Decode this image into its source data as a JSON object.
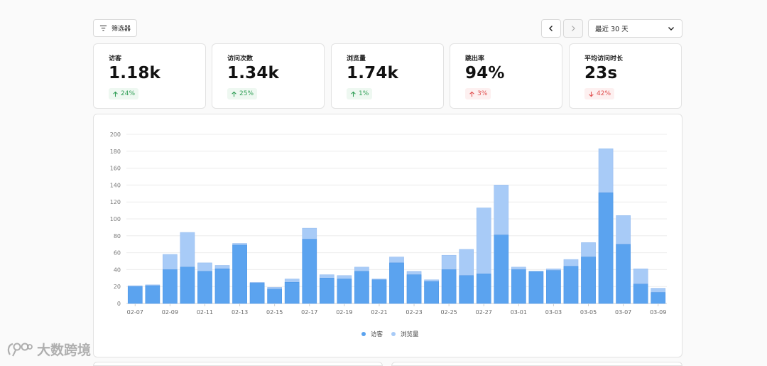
{
  "toolbar": {
    "filter_label": "筛选器",
    "range_label": "最近 30 天"
  },
  "metrics": [
    {
      "label": "访客",
      "value": "1.18k",
      "delta": "24%",
      "direction": "up",
      "tone": "good"
    },
    {
      "label": "访问次数",
      "value": "1.34k",
      "delta": "25%",
      "direction": "up",
      "tone": "good"
    },
    {
      "label": "浏览量",
      "value": "1.74k",
      "delta": "1%",
      "direction": "up",
      "tone": "good"
    },
    {
      "label": "跳出率",
      "value": "94%",
      "delta": "3%",
      "direction": "up",
      "tone": "bad"
    },
    {
      "label": "平均访问时长",
      "value": "23s",
      "delta": "42%",
      "direction": "down",
      "tone": "bad"
    }
  ],
  "colors": {
    "visitors": "#5ba3ef",
    "views": "#a8cbf7",
    "good": "#2f9e55",
    "bad": "#e05050"
  },
  "chart_data": {
    "type": "bar",
    "stacked_overlay": true,
    "ylim": [
      0,
      200
    ],
    "yticks": [
      0,
      20,
      40,
      60,
      80,
      100,
      120,
      140,
      160,
      180,
      200
    ],
    "categories": [
      "02-07",
      "02-08",
      "02-09",
      "02-10",
      "02-11",
      "02-12",
      "02-13",
      "02-14",
      "02-15",
      "02-16",
      "02-17",
      "02-18",
      "02-19",
      "02-20",
      "02-21",
      "02-22",
      "02-23",
      "02-24",
      "02-25",
      "02-26",
      "02-27",
      "02-28",
      "03-01",
      "03-02",
      "03-03",
      "03-04",
      "03-05",
      "03-06",
      "03-07",
      "03-08",
      "03-09"
    ],
    "xtick_labels": [
      "02-07",
      "",
      "02-09",
      "",
      "02-11",
      "",
      "02-13",
      "",
      "02-15",
      "",
      "02-17",
      "",
      "02-19",
      "",
      "02-21",
      "",
      "02-23",
      "",
      "02-25",
      "",
      "02-27",
      "",
      "03-01",
      "",
      "03-03",
      "",
      "03-05",
      "",
      "03-07",
      "",
      "03-09"
    ],
    "series": [
      {
        "name": "访客",
        "values": [
          20,
          21,
          40,
          43,
          38,
          41,
          69,
          24,
          17,
          25,
          76,
          30,
          29,
          38,
          28,
          48,
          34,
          26,
          40,
          33,
          35,
          81,
          40,
          38,
          39,
          44,
          55,
          131,
          70,
          23,
          13
        ]
      },
      {
        "name": "浏览量",
        "values": [
          21,
          22,
          58,
          84,
          48,
          45,
          71,
          25,
          19,
          29,
          89,
          34,
          33,
          43,
          29,
          55,
          38,
          28,
          57,
          64,
          113,
          140,
          43,
          38,
          41,
          52,
          72,
          183,
          104,
          41,
          18
        ]
      }
    ],
    "legend_position": "bottom-center",
    "grid": true
  },
  "watermark": {
    "text": "大数跨境"
  }
}
